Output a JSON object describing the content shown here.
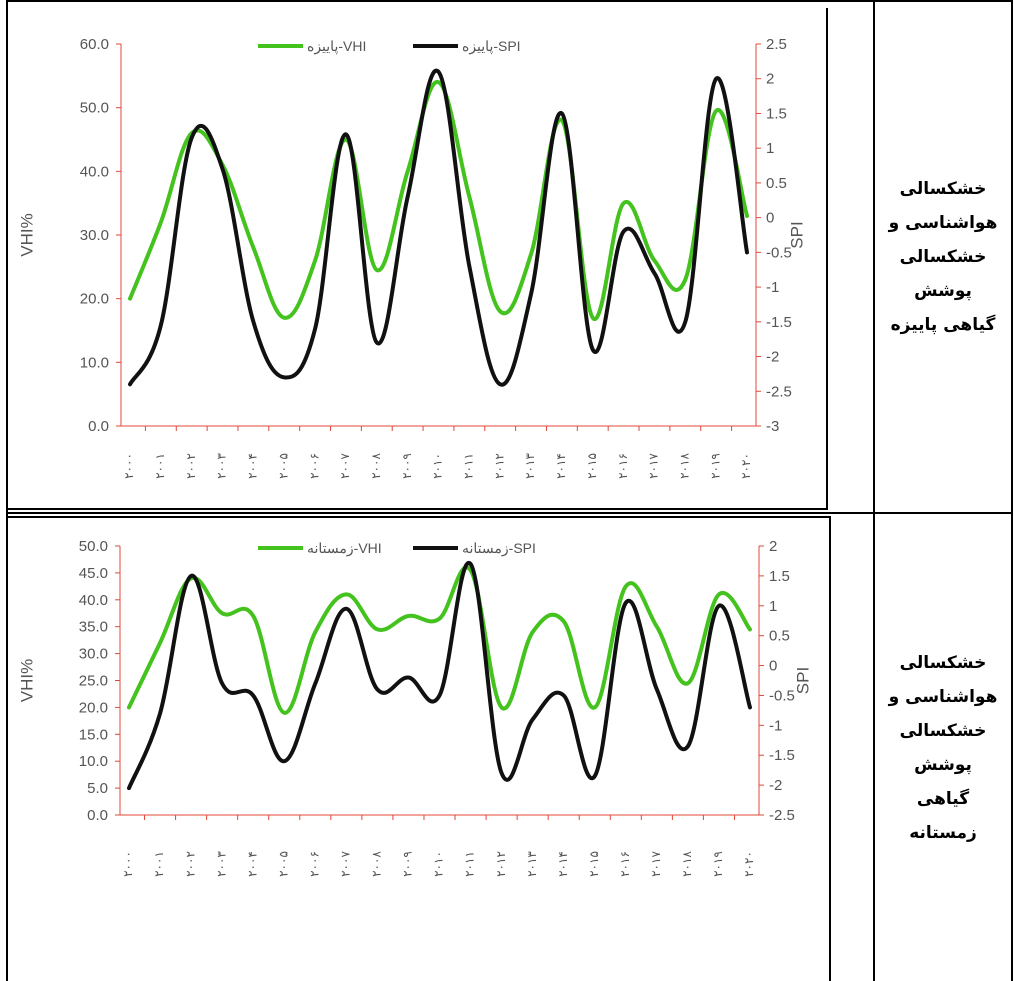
{
  "row_labels": [
    [
      "خشکسالی",
      "هواشناسی و",
      "خشکسالی",
      "پوشش",
      "گیاهی پاییزه"
    ],
    [
      "خشکسالی",
      "هواشناسی و",
      "خشکسالی",
      "پوشش",
      "گیاهی",
      "زمستانه"
    ]
  ],
  "colors": {
    "vhi": "#44c21d",
    "spi": "#111111",
    "right_axis": "#e0483a",
    "left_axis": "#e0483a",
    "text": "#555555"
  },
  "chart_data": [
    {
      "type": "line",
      "categories": [
        "۲۰۰۰",
        "۲۰۰۱",
        "۲۰۰۲",
        "۲۰۰۳",
        "۲۰۰۴",
        "۲۰۰۵",
        "۲۰۰۶",
        "۲۰۰۷",
        "۲۰۰۸",
        "۲۰۰۹",
        "۲۰۱۰",
        "۲۰۱۱",
        "۲۰۱۲",
        "۲۰۱۳",
        "۲۰۱۴",
        "۲۰۱۵",
        "۲۰۱۶",
        "۲۰۱۷",
        "۲۰۱۸",
        "۲۰۱۹",
        "۲۰۲۰"
      ],
      "ylabel": "VHI%",
      "y2label": "SPI",
      "ylim": [
        0,
        60
      ],
      "y_ticks": [
        "0.0",
        "10.0",
        "20.0",
        "30.0",
        "40.0",
        "50.0",
        "60.0"
      ],
      "y2lim": [
        -3,
        2.5
      ],
      "y2_ticks": [
        "-3",
        "-2.5",
        "-2",
        "-1.5",
        "-1",
        "-0.5",
        "0",
        "0.5",
        "1",
        "1.5",
        "2",
        "2.5"
      ],
      "legend_position": "top-center",
      "series": [
        {
          "name": "پاییزه-VHI",
          "axis": "left",
          "values": [
            20,
            32,
            46,
            41,
            28,
            17,
            26,
            45,
            24.5,
            40,
            54,
            36,
            18,
            27,
            48,
            17,
            35,
            26,
            23,
            49.5,
            33
          ]
        },
        {
          "name": "پاییزه-SPI",
          "axis": "right",
          "values": [
            -2.4,
            -1.55,
            1.15,
            0.7,
            -1.5,
            -2.3,
            -1.6,
            1.2,
            -1.8,
            0.3,
            2.1,
            -0.7,
            -2.4,
            -1.1,
            1.5,
            -1.9,
            -0.2,
            -0.8,
            -1.5,
            2.0,
            -0.5
          ]
        }
      ]
    },
    {
      "type": "line",
      "categories": [
        "۲۰۰۰",
        "۲۰۰۱",
        "۲۰۰۲",
        "۲۰۰۳",
        "۲۰۰۴",
        "۲۰۰۵",
        "۲۰۰۶",
        "۲۰۰۷",
        "۲۰۰۸",
        "۲۰۰۹",
        "۲۰۱۰",
        "۲۰۱۱",
        "۲۰۱۲",
        "۲۰۱۳",
        "۲۰۱۴",
        "۲۰۱۵",
        "۲۰۱۶",
        "۲۰۱۷",
        "۲۰۱۸",
        "۲۰۱۹",
        "۲۰۲۰"
      ],
      "ylabel": "VHI%",
      "y2label": "SPI",
      "ylim": [
        0,
        50
      ],
      "y_ticks": [
        "0.0",
        "5.0",
        "10.0",
        "15.0",
        "20.0",
        "25.0",
        "30.0",
        "35.0",
        "40.0",
        "45.0",
        "50.0"
      ],
      "y2lim": [
        -2.5,
        2
      ],
      "y2_ticks": [
        "-2.5",
        "-2",
        "-1.5",
        "-1",
        "-0.5",
        "0",
        "0.5",
        "1",
        "1.5",
        "2"
      ],
      "legend_position": "top-center",
      "series": [
        {
          "name": "زمستانه-VHI",
          "axis": "left",
          "values": [
            20,
            32,
            44,
            37.5,
            37,
            19,
            34,
            41,
            34.5,
            37,
            36.5,
            45.5,
            20,
            34,
            36,
            20,
            42.5,
            35,
            24.5,
            41,
            34.5
          ]
        },
        {
          "name": "زمستانه-SPI",
          "axis": "right",
          "values": [
            -2.05,
            -0.8,
            1.5,
            -0.3,
            -0.5,
            -1.6,
            -0.3,
            0.95,
            -0.4,
            -0.2,
            -0.5,
            1.7,
            -1.8,
            -0.9,
            -0.5,
            -1.85,
            1.05,
            -0.4,
            -1.35,
            1.0,
            -0.7
          ]
        }
      ]
    }
  ]
}
